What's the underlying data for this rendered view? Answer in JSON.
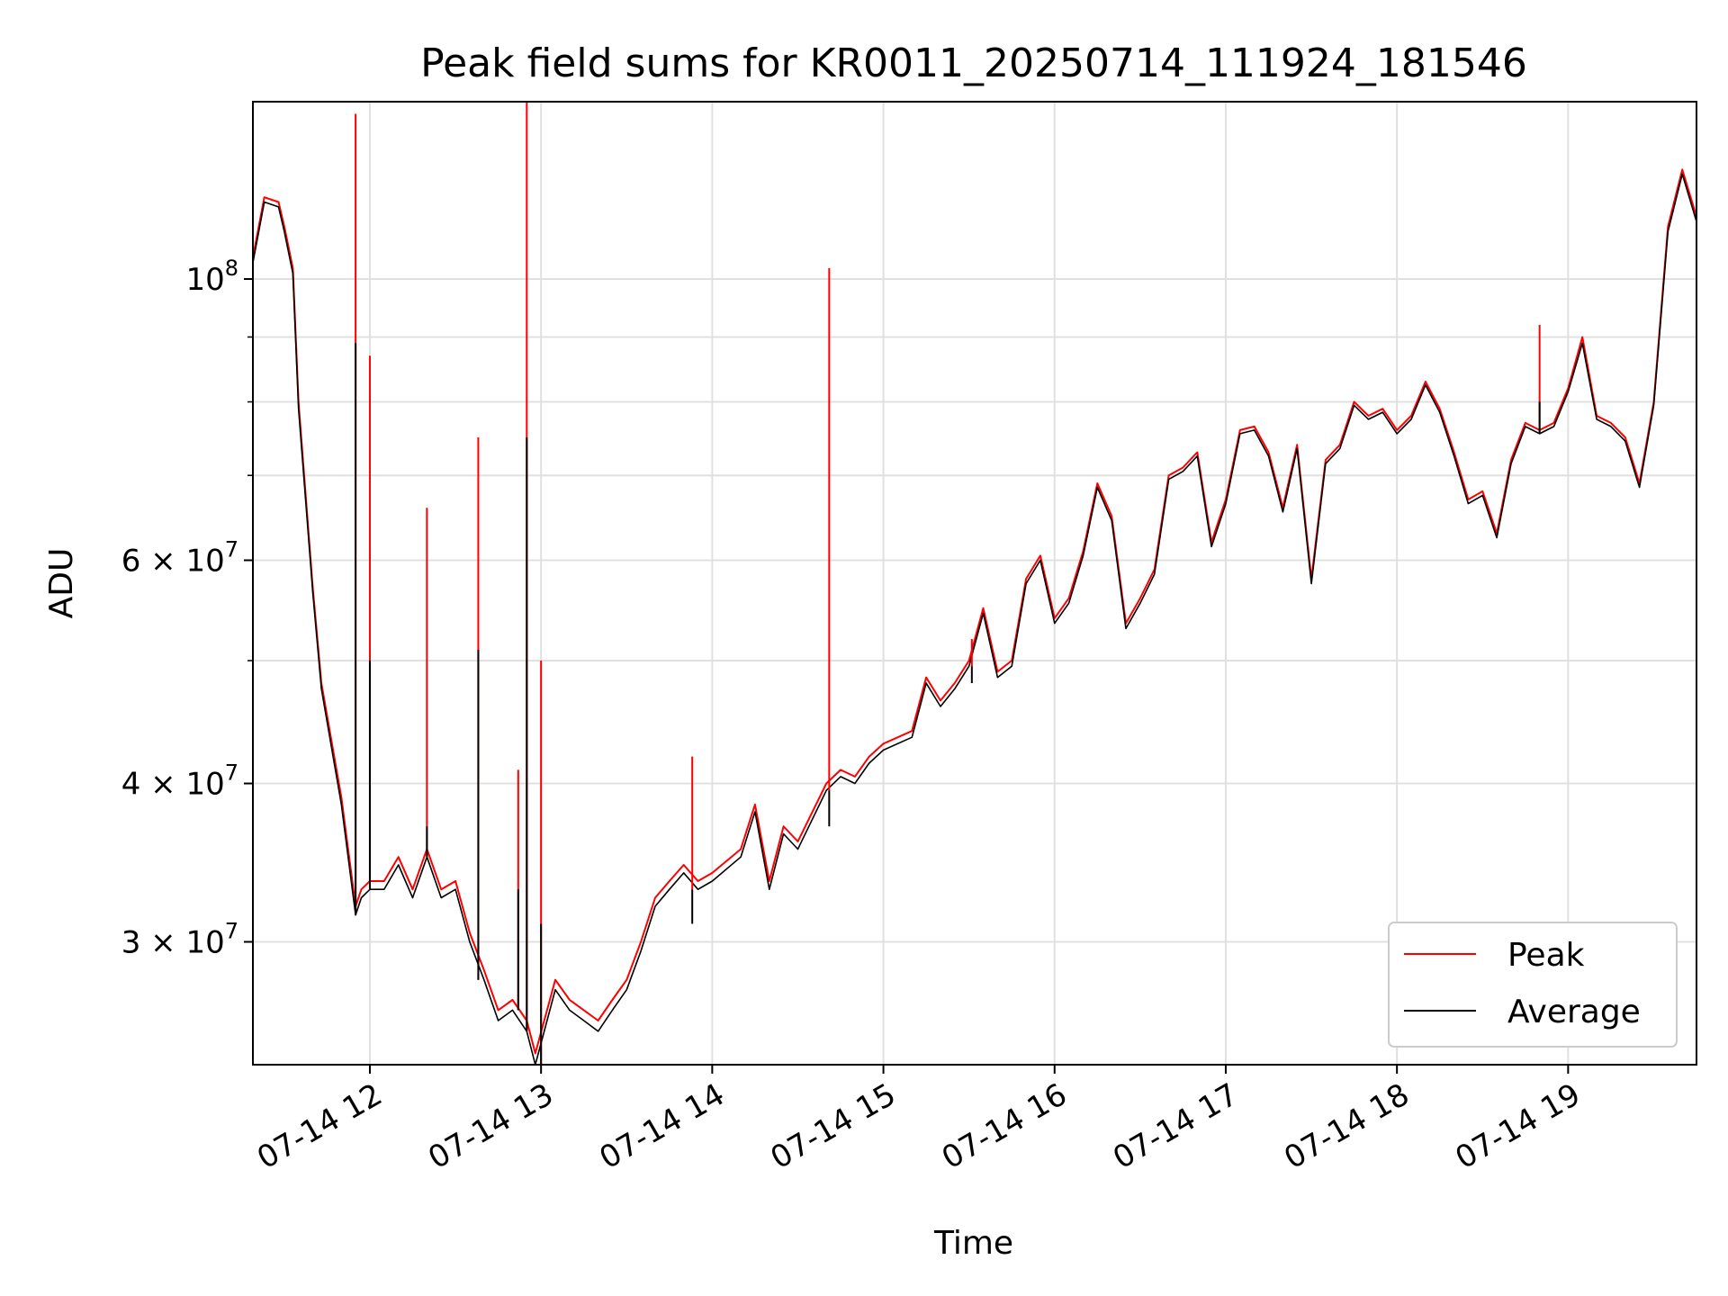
{
  "chart_data": {
    "type": "line",
    "title": "Peak field sums for KR0011_20250714_111924_181546",
    "xlabel": "Time",
    "ylabel": "ADU",
    "yscale": "log",
    "ylim": [
      24000000,
      138000000
    ],
    "xlim": [
      "07-14 11:19",
      "07-14 19:45"
    ],
    "grid": true,
    "legend_position": "lower right",
    "x_tick_labels": [
      "07-14 12",
      "07-14 13",
      "07-14 14",
      "07-14 15",
      "07-14 16",
      "07-14 17",
      "07-14 18",
      "07-14 19"
    ],
    "y_tick_labels": [
      {
        "value": 30000000,
        "mantissa": "3",
        "exponent": "7"
      },
      {
        "value": 40000000,
        "mantissa": "4",
        "exponent": "7"
      },
      {
        "value": 60000000,
        "mantissa": "6",
        "exponent": "7"
      },
      {
        "value": 100000000,
        "mantissa": "",
        "exponent": "8"
      }
    ],
    "minor_y_ticks": [
      50000000,
      70000000,
      80000000,
      90000000
    ],
    "x": [
      "07-14 11:19",
      "07-14 11:23",
      "07-14 11:28",
      "07-14 11:30",
      "07-14 11:33",
      "07-14 11:35",
      "07-14 11:40",
      "07-14 11:43",
      "07-14 11:50",
      "07-14 11:55",
      "07-14 11:57",
      "07-14 12:00",
      "07-14 12:05",
      "07-14 12:10",
      "07-14 12:15",
      "07-14 12:20",
      "07-14 12:25",
      "07-14 12:30",
      "07-14 12:35",
      "07-14 12:40",
      "07-14 12:45",
      "07-14 12:50",
      "07-14 12:55",
      "07-14 12:58",
      "07-14 13:05",
      "07-14 13:10",
      "07-14 13:15",
      "07-14 13:20",
      "07-14 13:25",
      "07-14 13:30",
      "07-14 13:35",
      "07-14 13:40",
      "07-14 13:45",
      "07-14 13:50",
      "07-14 13:55",
      "07-14 14:00",
      "07-14 14:10",
      "07-14 14:15",
      "07-14 14:20",
      "07-14 14:25",
      "07-14 14:30",
      "07-14 14:40",
      "07-14 14:45",
      "07-14 14:50",
      "07-14 14:55",
      "07-14 15:00",
      "07-14 15:10",
      "07-14 15:15",
      "07-14 15:20",
      "07-14 15:25",
      "07-14 15:30",
      "07-14 15:35",
      "07-14 15:40",
      "07-14 15:45",
      "07-14 15:50",
      "07-14 15:55",
      "07-14 16:00",
      "07-14 16:05",
      "07-14 16:10",
      "07-14 16:15",
      "07-14 16:20",
      "07-14 16:25",
      "07-14 16:30",
      "07-14 16:35",
      "07-14 16:40",
      "07-14 16:45",
      "07-14 16:50",
      "07-14 16:55",
      "07-14 17:00",
      "07-14 17:05",
      "07-14 17:10",
      "07-14 17:15",
      "07-14 17:20",
      "07-14 17:25",
      "07-14 17:30",
      "07-14 17:35",
      "07-14 17:40",
      "07-14 17:45",
      "07-14 17:50",
      "07-14 17:55",
      "07-14 18:00",
      "07-14 18:05",
      "07-14 18:10",
      "07-14 18:15",
      "07-14 18:20",
      "07-14 18:25",
      "07-14 18:30",
      "07-14 18:35",
      "07-14 18:40",
      "07-14 18:45",
      "07-14 18:50",
      "07-14 18:55",
      "07-14 19:00",
      "07-14 19:05",
      "07-14 19:10",
      "07-14 19:15",
      "07-14 19:20",
      "07-14 19:25",
      "07-14 19:30",
      "07-14 19:35",
      "07-14 19:40",
      "07-14 19:45"
    ],
    "series": [
      {
        "name": "Peak",
        "color": "#ff0000",
        "values": [
          104000000,
          116000000,
          115000000,
          110000000,
          102000000,
          80000000,
          57000000,
          48000000,
          39000000,
          32000000,
          33000000,
          33500000,
          33500000,
          35000000,
          33000000,
          35500000,
          33000000,
          33500000,
          30500000,
          28500000,
          26500000,
          27000000,
          26000000,
          24500000,
          28000000,
          27000000,
          26500000,
          26000000,
          27000000,
          28000000,
          30000000,
          32500000,
          33500000,
          34500000,
          33500000,
          34000000,
          35500000,
          38500000,
          33500000,
          37000000,
          36000000,
          40000000,
          41000000,
          40500000,
          42000000,
          43000000,
          44000000,
          48500000,
          46500000,
          48000000,
          50000000,
          55000000,
          49000000,
          50000000,
          58000000,
          60500000,
          54000000,
          56000000,
          61000000,
          69000000,
          65000000,
          53500000,
          56000000,
          59000000,
          70000000,
          71000000,
          73000000,
          62000000,
          67000000,
          76000000,
          76500000,
          73000000,
          66000000,
          74000000,
          58000000,
          72000000,
          74000000,
          80000000,
          78000000,
          79000000,
          76000000,
          78000000,
          83000000,
          79000000,
          73000000,
          67000000,
          68000000,
          63000000,
          72000000,
          77000000,
          76000000,
          77000000,
          82000000,
          90000000,
          78000000,
          77000000,
          75000000,
          69000000,
          80000000,
          110000000,
          122000000,
          112000000
        ]
      },
      {
        "name": "Average",
        "color": "#000000",
        "values": [
          103000000,
          115000000,
          114000000,
          109000000,
          101000000,
          79000000,
          56500000,
          47500000,
          38500000,
          31500000,
          32500000,
          33000000,
          33000000,
          34500000,
          32500000,
          35000000,
          32500000,
          33000000,
          30000000,
          28000000,
          26000000,
          26500000,
          25500000,
          24000000,
          27500000,
          26500000,
          26000000,
          25500000,
          26500000,
          27500000,
          29500000,
          32000000,
          33000000,
          34000000,
          33000000,
          33500000,
          35000000,
          38000000,
          33000000,
          36500000,
          35500000,
          39500000,
          40500000,
          40000000,
          41500000,
          42500000,
          43500000,
          48000000,
          46000000,
          47500000,
          49500000,
          54500000,
          48500000,
          49500000,
          57500000,
          60000000,
          53500000,
          55500000,
          60500000,
          68500000,
          64500000,
          53000000,
          55500000,
          58500000,
          69500000,
          70500000,
          72500000,
          61500000,
          66500000,
          75500000,
          76000000,
          72500000,
          65500000,
          73500000,
          57500000,
          71500000,
          73500000,
          79500000,
          77500000,
          78500000,
          75500000,
          77500000,
          82500000,
          78500000,
          72500000,
          66500000,
          67500000,
          62500000,
          71500000,
          76500000,
          75500000,
          76500000,
          81500000,
          89000000,
          77500000,
          76500000,
          74500000,
          68500000,
          79500000,
          109000000,
          121000000,
          111000000
        ]
      }
    ],
    "spikes": [
      {
        "x": "07-14 11:55",
        "peak": 135000000,
        "average": 89000000
      },
      {
        "x": "07-14 12:00",
        "peak": 87000000,
        "average": 50000000
      },
      {
        "x": "07-14 12:20",
        "peak": 66000000,
        "average": 37000000
      },
      {
        "x": "07-14 12:38",
        "peak": 75000000,
        "average": 51000000
      },
      {
        "x": "07-14 12:52",
        "peak": 41000000,
        "average": 33000000
      },
      {
        "x": "07-14 12:55",
        "peak": 138000000,
        "average": 75000000
      },
      {
        "x": "07-14 13:00",
        "peak": 50000000,
        "average": 31000000
      },
      {
        "x": "07-14 13:53",
        "peak": 42000000,
        "average": 31000000
      },
      {
        "x": "07-14 14:41",
        "peak": 102000000,
        "average": 37000000
      },
      {
        "x": "07-14 15:31",
        "peak": 52000000,
        "average": 48000000
      },
      {
        "x": "07-14 18:50",
        "peak": 92000000,
        "average": 80000000
      }
    ]
  }
}
